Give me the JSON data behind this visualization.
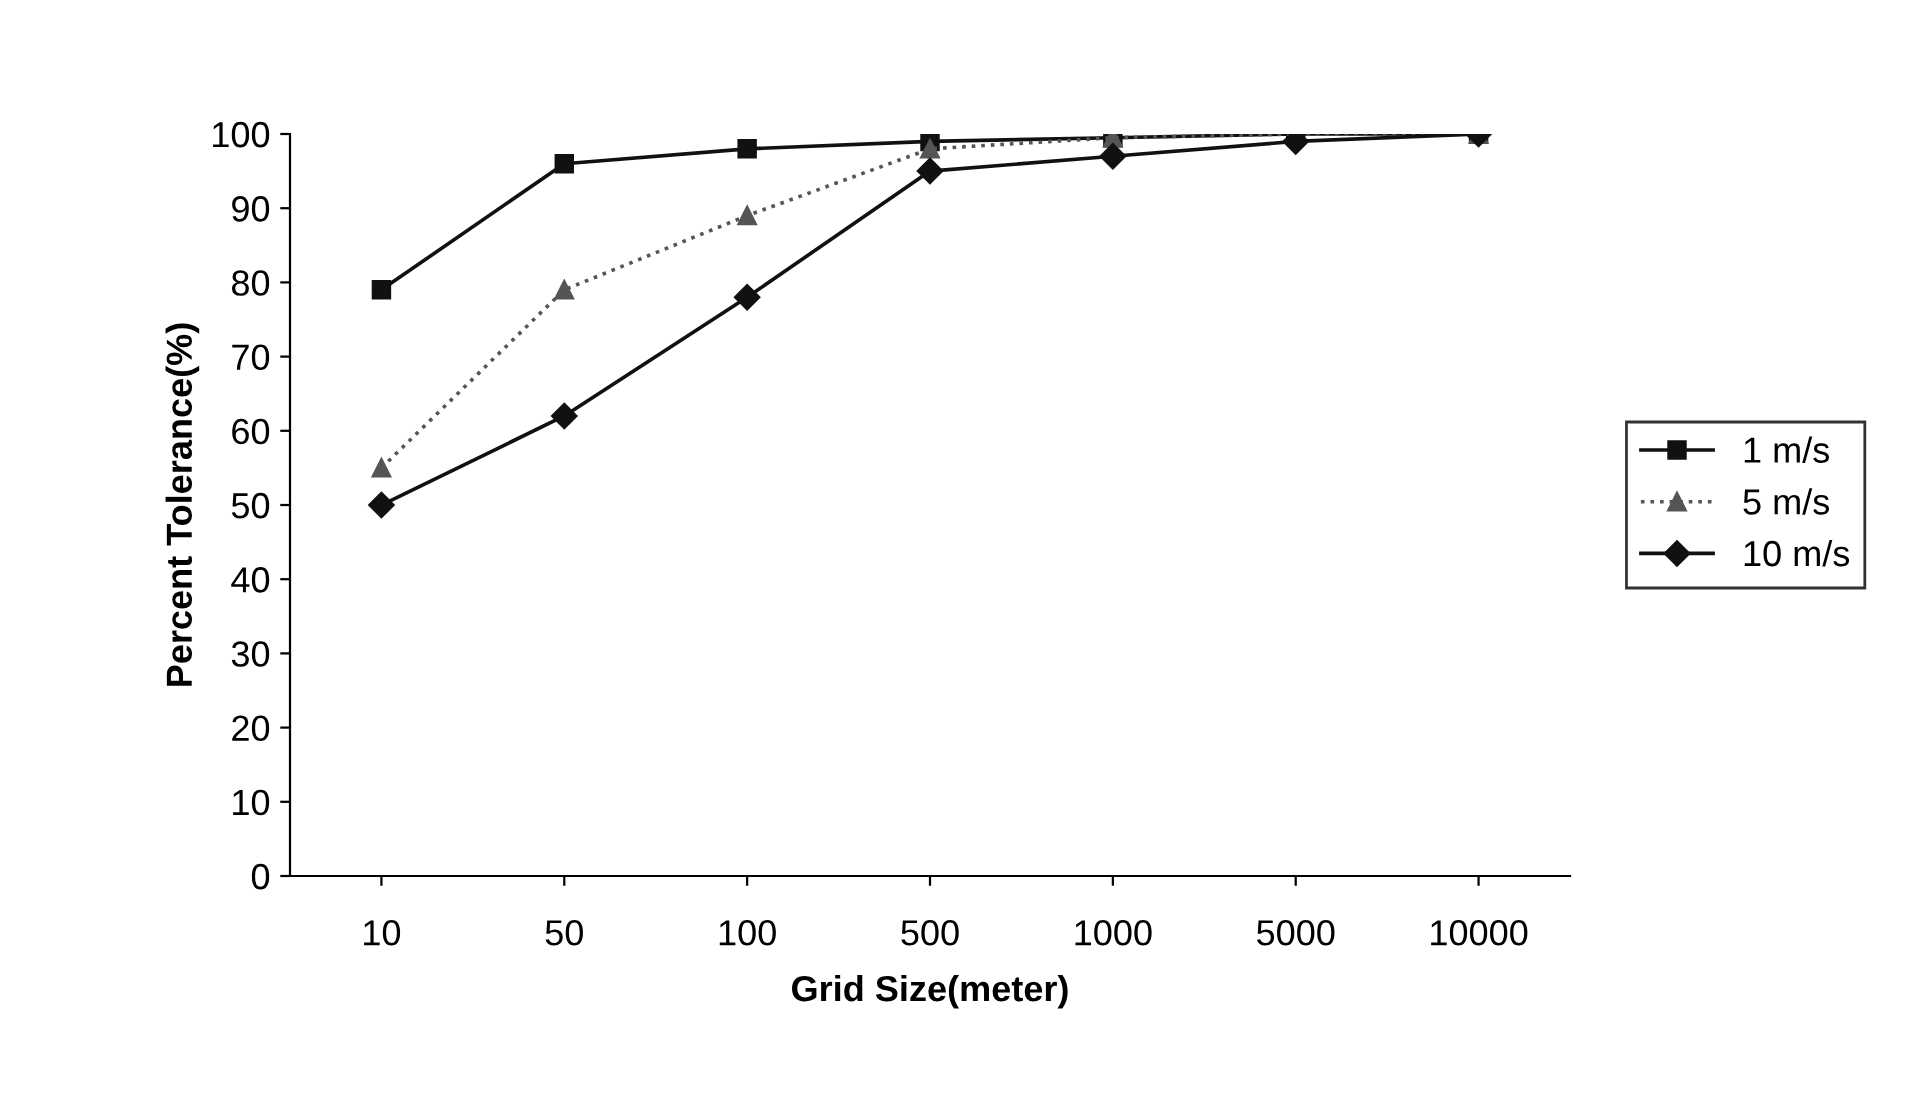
{
  "chart_data": {
    "type": "line",
    "xlabel": "Grid Size(meter)",
    "ylabel": "Percent Tolerance(%)",
    "categories": [
      "10",
      "50",
      "100",
      "500",
      "1000",
      "5000",
      "10000"
    ],
    "series": [
      {
        "name": "1 m/s",
        "color": "#111111",
        "marker": "square",
        "line_style": "solid",
        "values": [
          79,
          96,
          98,
          99,
          99.5,
          100,
          100
        ]
      },
      {
        "name": "5 m/s",
        "color": "#555555",
        "marker": "triangle",
        "line_style": "dotted",
        "values": [
          55,
          79,
          89,
          98,
          99.5,
          100,
          100
        ]
      },
      {
        "name": "10 m/s",
        "color": "#111111",
        "marker": "diamond",
        "line_style": "solid",
        "values": [
          50,
          62,
          78,
          95,
          97,
          99,
          100
        ]
      }
    ],
    "ylim": [
      0,
      100
    ],
    "yticks": [
      0,
      10,
      20,
      30,
      40,
      50,
      60,
      70,
      80,
      90,
      100
    ],
    "grid": false,
    "legend": "right"
  }
}
